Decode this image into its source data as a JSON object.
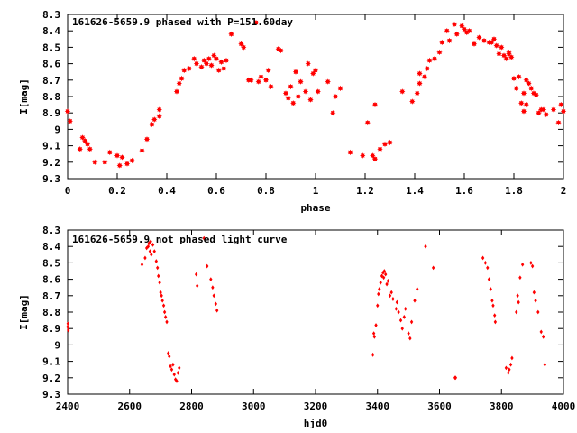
{
  "chart_data": [
    {
      "type": "scatter",
      "title": "161626-5659.9 phased with P=151.60day",
      "xlabel": "phase",
      "ylabel": "I[mag]",
      "xlim": [
        0,
        2
      ],
      "ylim": [
        8.3,
        9.3
      ],
      "y_inverted": true,
      "xticks": [
        "0",
        "0.2",
        "0.4",
        "0.6",
        "0.8",
        "1",
        "1.2",
        "1.4",
        "1.6",
        "1.8",
        "2"
      ],
      "yticks": [
        "8.3",
        "8.4",
        "8.5",
        "8.6",
        "8.7",
        "8.8",
        "8.9",
        "9",
        "9.1",
        "9.2",
        "9.3"
      ],
      "marker_color": "#ff0000",
      "marker": "star",
      "points": [
        [
          0.0,
          8.89
        ],
        [
          0.01,
          8.95
        ],
        [
          0.05,
          9.12
        ],
        [
          0.06,
          9.05
        ],
        [
          0.07,
          9.07
        ],
        [
          0.08,
          9.09
        ],
        [
          0.09,
          9.12
        ],
        [
          0.11,
          9.2
        ],
        [
          0.15,
          9.2
        ],
        [
          0.17,
          9.14
        ],
        [
          0.2,
          9.16
        ],
        [
          0.21,
          9.22
        ],
        [
          0.22,
          9.17
        ],
        [
          0.24,
          9.21
        ],
        [
          0.26,
          9.19
        ],
        [
          0.3,
          9.13
        ],
        [
          0.32,
          9.06
        ],
        [
          0.34,
          8.97
        ],
        [
          0.35,
          8.94
        ],
        [
          0.37,
          8.88
        ],
        [
          0.37,
          8.92
        ],
        [
          0.44,
          8.77
        ],
        [
          0.45,
          8.72
        ],
        [
          0.46,
          8.69
        ],
        [
          0.47,
          8.64
        ],
        [
          0.49,
          8.63
        ],
        [
          0.51,
          8.57
        ],
        [
          0.52,
          8.6
        ],
        [
          0.54,
          8.62
        ],
        [
          0.55,
          8.58
        ],
        [
          0.56,
          8.6
        ],
        [
          0.57,
          8.57
        ],
        [
          0.58,
          8.61
        ],
        [
          0.59,
          8.55
        ],
        [
          0.6,
          8.57
        ],
        [
          0.61,
          8.64
        ],
        [
          0.62,
          8.59
        ],
        [
          0.63,
          8.63
        ],
        [
          0.64,
          8.58
        ],
        [
          0.66,
          8.42
        ],
        [
          0.7,
          8.48
        ],
        [
          0.71,
          8.5
        ],
        [
          0.73,
          8.7
        ],
        [
          0.74,
          8.7
        ],
        [
          0.76,
          8.35
        ],
        [
          0.77,
          8.71
        ],
        [
          0.78,
          8.68
        ],
        [
          0.8,
          8.7
        ],
        [
          0.81,
          8.64
        ],
        [
          0.82,
          8.74
        ],
        [
          0.85,
          8.51
        ],
        [
          0.86,
          8.52
        ],
        [
          0.88,
          8.78
        ],
        [
          0.89,
          8.81
        ],
        [
          0.9,
          8.74
        ],
        [
          0.91,
          8.84
        ],
        [
          0.92,
          8.65
        ],
        [
          0.93,
          8.8
        ],
        [
          0.94,
          8.71
        ],
        [
          0.96,
          8.77
        ],
        [
          0.97,
          8.6
        ],
        [
          0.98,
          8.82
        ],
        [
          0.99,
          8.66
        ],
        [
          1.0,
          8.64
        ],
        [
          1.01,
          8.77
        ],
        [
          1.05,
          8.71
        ],
        [
          1.07,
          8.9
        ],
        [
          1.08,
          8.8
        ],
        [
          1.1,
          8.75
        ],
        [
          1.14,
          9.14
        ],
        [
          1.19,
          9.16
        ],
        [
          1.21,
          8.96
        ],
        [
          1.23,
          9.16
        ],
        [
          1.24,
          9.18
        ],
        [
          1.24,
          8.85
        ],
        [
          1.26,
          9.12
        ],
        [
          1.28,
          9.09
        ],
        [
          1.3,
          9.08
        ],
        [
          1.35,
          8.77
        ],
        [
          1.39,
          8.83
        ],
        [
          1.41,
          8.78
        ],
        [
          1.42,
          8.72
        ],
        [
          1.42,
          8.66
        ],
        [
          1.44,
          8.68
        ],
        [
          1.45,
          8.63
        ],
        [
          1.46,
          8.58
        ],
        [
          1.48,
          8.57
        ],
        [
          1.5,
          8.53
        ],
        [
          1.51,
          8.47
        ],
        [
          1.53,
          8.4
        ],
        [
          1.54,
          8.46
        ],
        [
          1.56,
          8.36
        ],
        [
          1.57,
          8.42
        ],
        [
          1.59,
          8.37
        ],
        [
          1.6,
          8.39
        ],
        [
          1.61,
          8.41
        ],
        [
          1.62,
          8.4
        ],
        [
          1.64,
          8.48
        ],
        [
          1.66,
          8.44
        ],
        [
          1.68,
          8.46
        ],
        [
          1.7,
          8.47
        ],
        [
          1.71,
          8.47
        ],
        [
          1.73,
          8.49
        ],
        [
          1.74,
          8.54
        ],
        [
          1.75,
          8.5
        ],
        [
          1.76,
          8.55
        ],
        [
          1.77,
          8.57
        ],
        [
          1.78,
          8.53
        ],
        [
          1.79,
          8.56
        ],
        [
          1.8,
          8.69
        ],
        [
          1.81,
          8.75
        ],
        [
          1.82,
          8.68
        ],
        [
          1.83,
          8.84
        ],
        [
          1.84,
          8.78
        ],
        [
          1.85,
          8.7
        ],
        [
          1.86,
          8.72
        ],
        [
          1.87,
          8.75
        ],
        [
          1.88,
          8.78
        ],
        [
          1.89,
          8.79
        ],
        [
          1.9,
          8.9
        ],
        [
          1.91,
          8.88
        ],
        [
          1.92,
          8.88
        ],
        [
          1.93,
          8.91
        ],
        [
          1.96,
          8.88
        ],
        [
          1.98,
          8.96
        ],
        [
          1.99,
          8.85
        ],
        [
          2.0,
          8.89
        ],
        [
          1.84,
          8.89
        ],
        [
          1.85,
          8.85
        ],
        [
          1.78,
          8.54
        ],
        [
          1.72,
          8.45
        ]
      ]
    },
    {
      "type": "scatter",
      "title": "161626-5659.9 not phased light curve",
      "xlabel": "hjd0",
      "ylabel": "I[mag]",
      "xlim": [
        2400,
        4000
      ],
      "ylim": [
        8.3,
        9.3
      ],
      "y_inverted": true,
      "xticks": [
        "2400",
        "2600",
        "2800",
        "3000",
        "3200",
        "3400",
        "3600",
        "3800",
        "4000"
      ],
      "yticks": [
        "8.3",
        "8.4",
        "8.5",
        "8.6",
        "8.7",
        "8.8",
        "8.9",
        "9",
        "9.1",
        "9.2",
        "9.3"
      ],
      "marker_color": "#ff0000",
      "marker": "diamond",
      "points": [
        [
          2400,
          8.89
        ],
        [
          2401,
          8.87
        ],
        [
          2402,
          8.91
        ],
        [
          2640,
          8.51
        ],
        [
          2650,
          8.47
        ],
        [
          2655,
          8.41
        ],
        [
          2660,
          8.4
        ],
        [
          2663,
          8.38
        ],
        [
          2666,
          8.43
        ],
        [
          2668,
          8.37
        ],
        [
          2670,
          8.45
        ],
        [
          2675,
          8.39
        ],
        [
          2680,
          8.43
        ],
        [
          2686,
          8.49
        ],
        [
          2690,
          8.53
        ],
        [
          2693,
          8.58
        ],
        [
          2697,
          8.62
        ],
        [
          2700,
          8.68
        ],
        [
          2703,
          8.7
        ],
        [
          2706,
          8.73
        ],
        [
          2710,
          8.76
        ],
        [
          2713,
          8.8
        ],
        [
          2716,
          8.83
        ],
        [
          2720,
          8.86
        ],
        [
          2725,
          9.05
        ],
        [
          2728,
          9.07
        ],
        [
          2732,
          9.13
        ],
        [
          2736,
          9.15
        ],
        [
          2740,
          9.12
        ],
        [
          2744,
          9.18
        ],
        [
          2748,
          9.21
        ],
        [
          2752,
          9.22
        ],
        [
          2756,
          9.17
        ],
        [
          2760,
          9.14
        ],
        [
          2815,
          8.57
        ],
        [
          2818,
          8.64
        ],
        [
          2840,
          8.35
        ],
        [
          2850,
          8.52
        ],
        [
          2862,
          8.6
        ],
        [
          2868,
          8.65
        ],
        [
          2872,
          8.7
        ],
        [
          2878,
          8.75
        ],
        [
          2882,
          8.79
        ],
        [
          3385,
          9.06
        ],
        [
          3388,
          8.93
        ],
        [
          3390,
          8.95
        ],
        [
          3395,
          8.88
        ],
        [
          3400,
          8.76
        ],
        [
          3403,
          8.69
        ],
        [
          3406,
          8.66
        ],
        [
          3410,
          8.62
        ],
        [
          3414,
          8.58
        ],
        [
          3418,
          8.56
        ],
        [
          3420,
          8.59
        ],
        [
          3422,
          8.55
        ],
        [
          3426,
          8.57
        ],
        [
          3430,
          8.63
        ],
        [
          3434,
          8.61
        ],
        [
          3440,
          8.7
        ],
        [
          3445,
          8.68
        ],
        [
          3450,
          8.72
        ],
        [
          3460,
          8.78
        ],
        [
          3463,
          8.74
        ],
        [
          3468,
          8.8
        ],
        [
          3475,
          8.85
        ],
        [
          3480,
          8.9
        ],
        [
          3486,
          8.83
        ],
        [
          3490,
          8.78
        ],
        [
          3500,
          8.93
        ],
        [
          3505,
          8.96
        ],
        [
          3510,
          8.86
        ],
        [
          3520,
          8.73
        ],
        [
          3528,
          8.66
        ],
        [
          3555,
          8.4
        ],
        [
          3580,
          8.53
        ],
        [
          3650,
          9.2
        ],
        [
          3652,
          9.2
        ],
        [
          3740,
          8.47
        ],
        [
          3748,
          8.5
        ],
        [
          3755,
          8.53
        ],
        [
          3760,
          8.6
        ],
        [
          3765,
          8.66
        ],
        [
          3770,
          8.73
        ],
        [
          3773,
          8.76
        ],
        [
          3778,
          8.82
        ],
        [
          3780,
          8.86
        ],
        [
          3815,
          9.14
        ],
        [
          3822,
          9.17
        ],
        [
          3825,
          9.15
        ],
        [
          3830,
          9.12
        ],
        [
          3834,
          9.08
        ],
        [
          3848,
          8.8
        ],
        [
          3852,
          8.7
        ],
        [
          3855,
          8.74
        ],
        [
          3860,
          8.59
        ],
        [
          3868,
          8.51
        ],
        [
          3895,
          8.5
        ],
        [
          3900,
          8.52
        ],
        [
          3905,
          8.68
        ],
        [
          3910,
          8.73
        ],
        [
          3918,
          8.8
        ],
        [
          3928,
          8.92
        ],
        [
          3935,
          8.95
        ],
        [
          3940,
          9.12
        ]
      ]
    }
  ]
}
